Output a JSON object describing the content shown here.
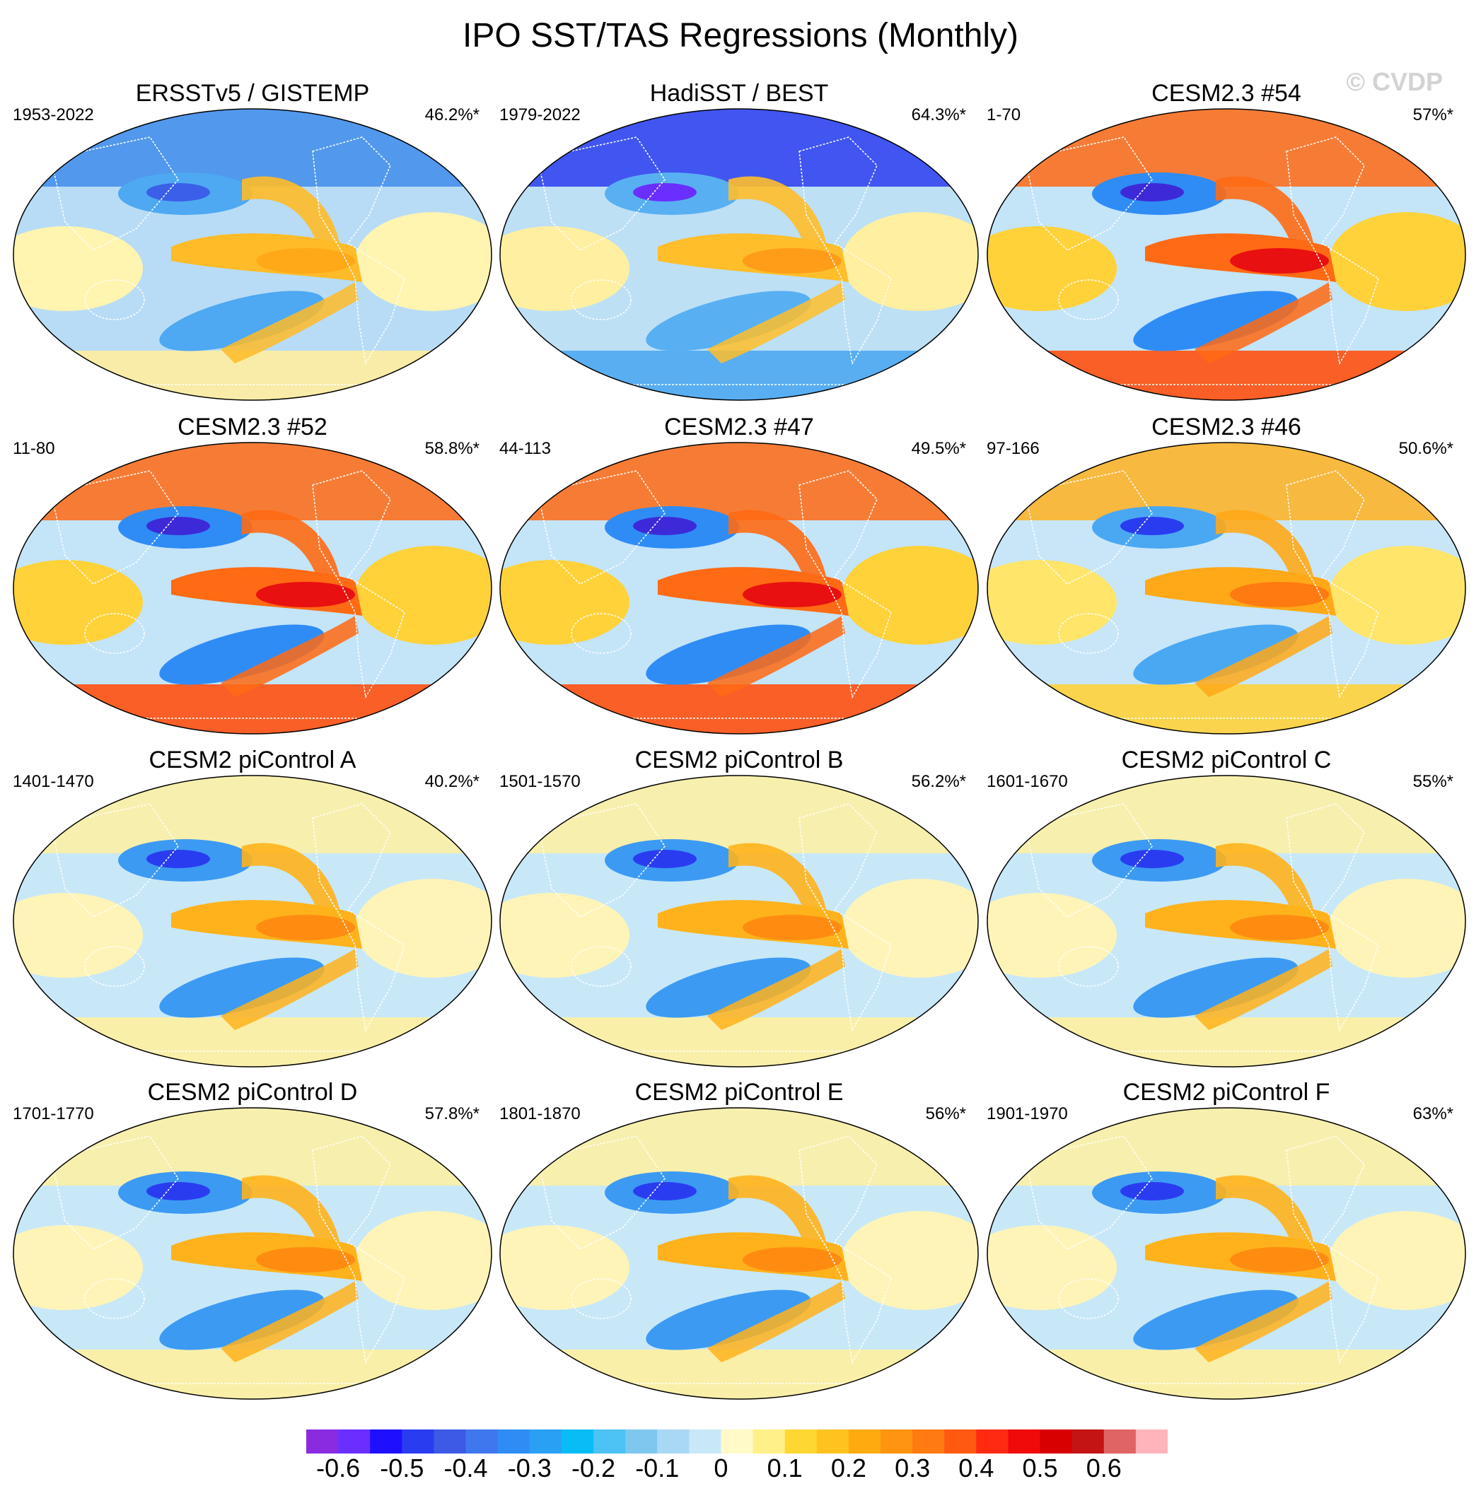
{
  "title": "IPO SST/TAS Regressions (Monthly)",
  "copyright": "© CVDP",
  "panels": [
    {
      "title": "ERSSTv5 / GISTEMP",
      "years": "1953-2022",
      "pct": "46.2%*",
      "style": "obs1"
    },
    {
      "title": "HadiSST / BEST",
      "years": "1979-2022",
      "pct": "64.3%*",
      "style": "obs2"
    },
    {
      "title": "CESM2.3 #54",
      "years": "1-70",
      "pct": "57%*",
      "style": "hot"
    },
    {
      "title": "CESM2.3 #52",
      "years": "11-80",
      "pct": "58.8%*",
      "style": "hot"
    },
    {
      "title": "CESM2.3 #47",
      "years": "44-113",
      "pct": "49.5%*",
      "style": "hot"
    },
    {
      "title": "CESM2.3 #46",
      "years": "97-166",
      "pct": "50.6%*",
      "style": "warm"
    },
    {
      "title": "CESM2 piControl A",
      "years": "1401-1470",
      "pct": "40.2%*",
      "style": "pic"
    },
    {
      "title": "CESM2 piControl B",
      "years": "1501-1570",
      "pct": "56.2%*",
      "style": "pic"
    },
    {
      "title": "CESM2 piControl C",
      "years": "1601-1670",
      "pct": "55%*",
      "style": "pic"
    },
    {
      "title": "CESM2 piControl D",
      "years": "1701-1770",
      "pct": "57.8%*",
      "style": "pic"
    },
    {
      "title": "CESM2 piControl E",
      "years": "1801-1870",
      "pct": "56%*",
      "style": "pic"
    },
    {
      "title": "CESM2 piControl F",
      "years": "1901-1970",
      "pct": "63%*",
      "style": "pic"
    }
  ],
  "colorbar": {
    "labels": [
      "-0.6",
      "-0.5",
      "-0.4",
      "-0.3",
      "-0.2",
      "-0.1",
      "0",
      "0.1",
      "0.2",
      "0.3",
      "0.4",
      "0.5",
      "0.6"
    ],
    "colors": [
      "#8a2be2",
      "#6a2fff",
      "#1e10ff",
      "#2a3cf0",
      "#3c5ae6",
      "#3f78ee",
      "#2f8cf5",
      "#2aa0f5",
      "#08bdf5",
      "#4cc2f5",
      "#7ec8f0",
      "#a9d8f5",
      "#c8e8f8",
      "#fffac8",
      "#fff08a",
      "#ffd732",
      "#ffc21e",
      "#ffab10",
      "#ff9410",
      "#ff7a10",
      "#ff5a10",
      "#ff2a10",
      "#f00a0a",
      "#d80000",
      "#c41414",
      "#e06464",
      "#ffb4bc"
    ]
  }
}
